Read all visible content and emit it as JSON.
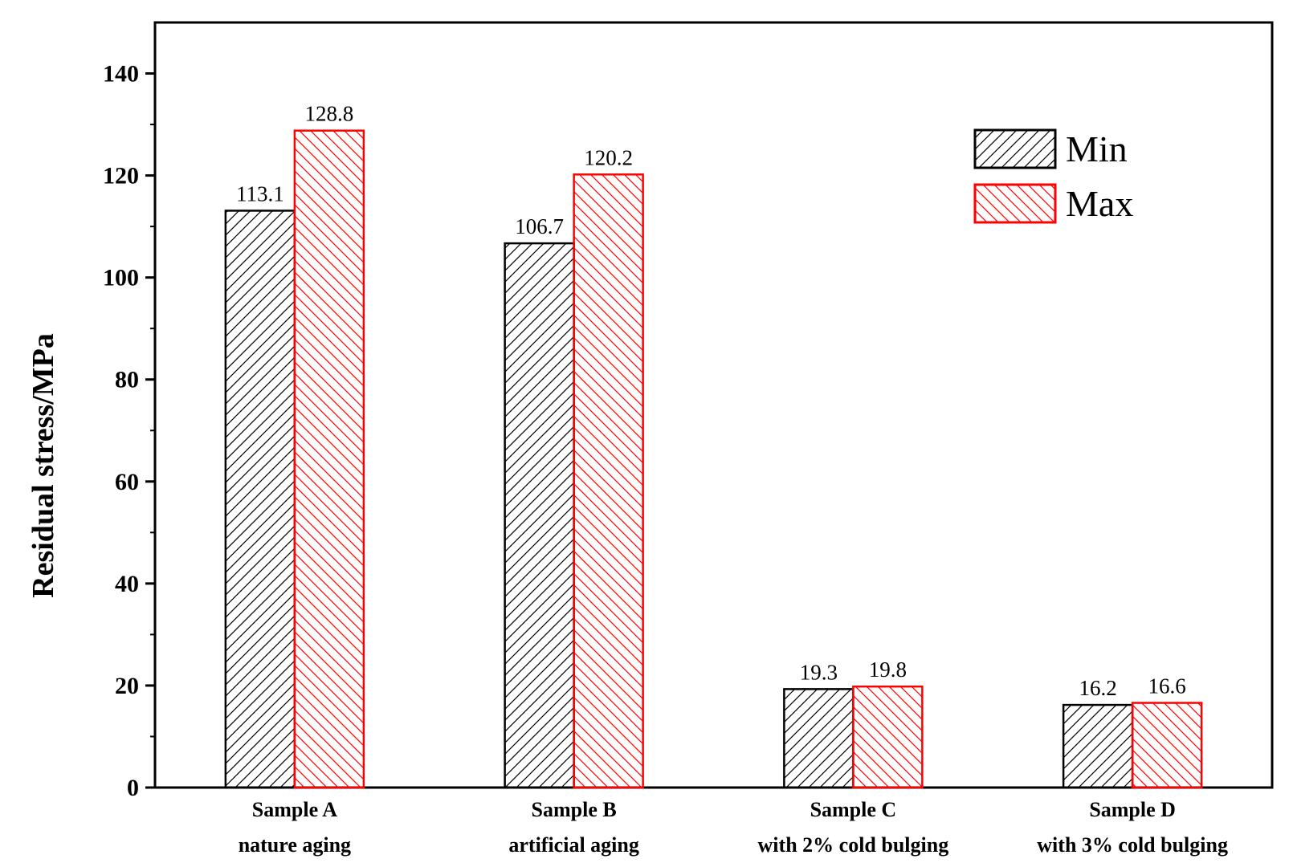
{
  "chart_data": {
    "type": "bar",
    "categories": [
      [
        "Sample A",
        "nature aging"
      ],
      [
        "Sample B",
        "artificial aging"
      ],
      [
        "Sample C",
        "with 2% cold bulging"
      ],
      [
        "Sample D",
        "with 3% cold bulging"
      ]
    ],
    "series": [
      {
        "name": "Min",
        "values": [
          113.1,
          106.7,
          19.3,
          16.2
        ],
        "color": "#000000",
        "hatch": "forward-diagonal"
      },
      {
        "name": "Max",
        "values": [
          128.8,
          120.2,
          19.8,
          16.6
        ],
        "color": "#ff0000",
        "hatch": "back-diagonal"
      }
    ],
    "data_labels": [
      [
        "113.1",
        "106.7",
        "19.3",
        "16.2"
      ],
      [
        "128.8",
        "120.2",
        "19.8",
        "16.6"
      ]
    ],
    "ylabel": "Residual stress/MPa",
    "xlabel": "",
    "ylim": [
      0,
      150
    ],
    "yticks": [
      0,
      20,
      40,
      60,
      80,
      100,
      120,
      140
    ],
    "ytick_labels": [
      "0",
      "20",
      "40",
      "60",
      "80",
      "100",
      "120",
      "140"
    ],
    "grid": false,
    "legend_position": "top-right"
  }
}
